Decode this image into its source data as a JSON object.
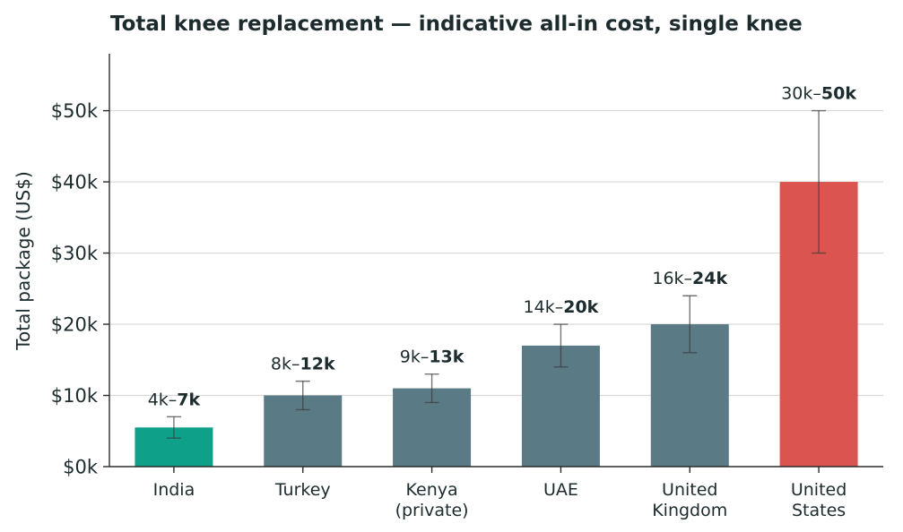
{
  "chart_data": {
    "type": "bar",
    "title": "Total knee replacement — indicative all-in cost, single knee",
    "xlabel": "",
    "ylabel": "Total package (US$)",
    "ylim": [
      0,
      58000
    ],
    "yticks": [
      0,
      10000,
      20000,
      30000,
      40000,
      50000
    ],
    "ytick_labels": [
      "$0k",
      "$10k",
      "$20k",
      "$30k",
      "$40k",
      "$50k"
    ],
    "grid": "horizontal",
    "categories": [
      [
        "India"
      ],
      [
        "Turkey"
      ],
      [
        "Kenya",
        "(private)"
      ],
      [
        "UAE"
      ],
      [
        "United",
        "Kingdom"
      ],
      [
        "United",
        "States"
      ]
    ],
    "values": [
      5500,
      10000,
      11000,
      17000,
      20000,
      40000
    ],
    "ranges": [
      [
        4000,
        7000
      ],
      [
        8000,
        12000
      ],
      [
        9000,
        13000
      ],
      [
        14000,
        20000
      ],
      [
        16000,
        24000
      ],
      [
        30000,
        50000
      ]
    ],
    "data_labels": [
      {
        "low": "4k",
        "high": "7k"
      },
      {
        "low": "8k",
        "high": "12k"
      },
      {
        "low": "9k",
        "high": "13k"
      },
      {
        "low": "14k",
        "high": "20k"
      },
      {
        "low": "16k",
        "high": "24k"
      },
      {
        "low": "30k",
        "high": "50k"
      }
    ],
    "colors": [
      "#0fa08a",
      "#5a7a86",
      "#5a7a86",
      "#5a7a86",
      "#5a7a86",
      "#db544f"
    ]
  }
}
